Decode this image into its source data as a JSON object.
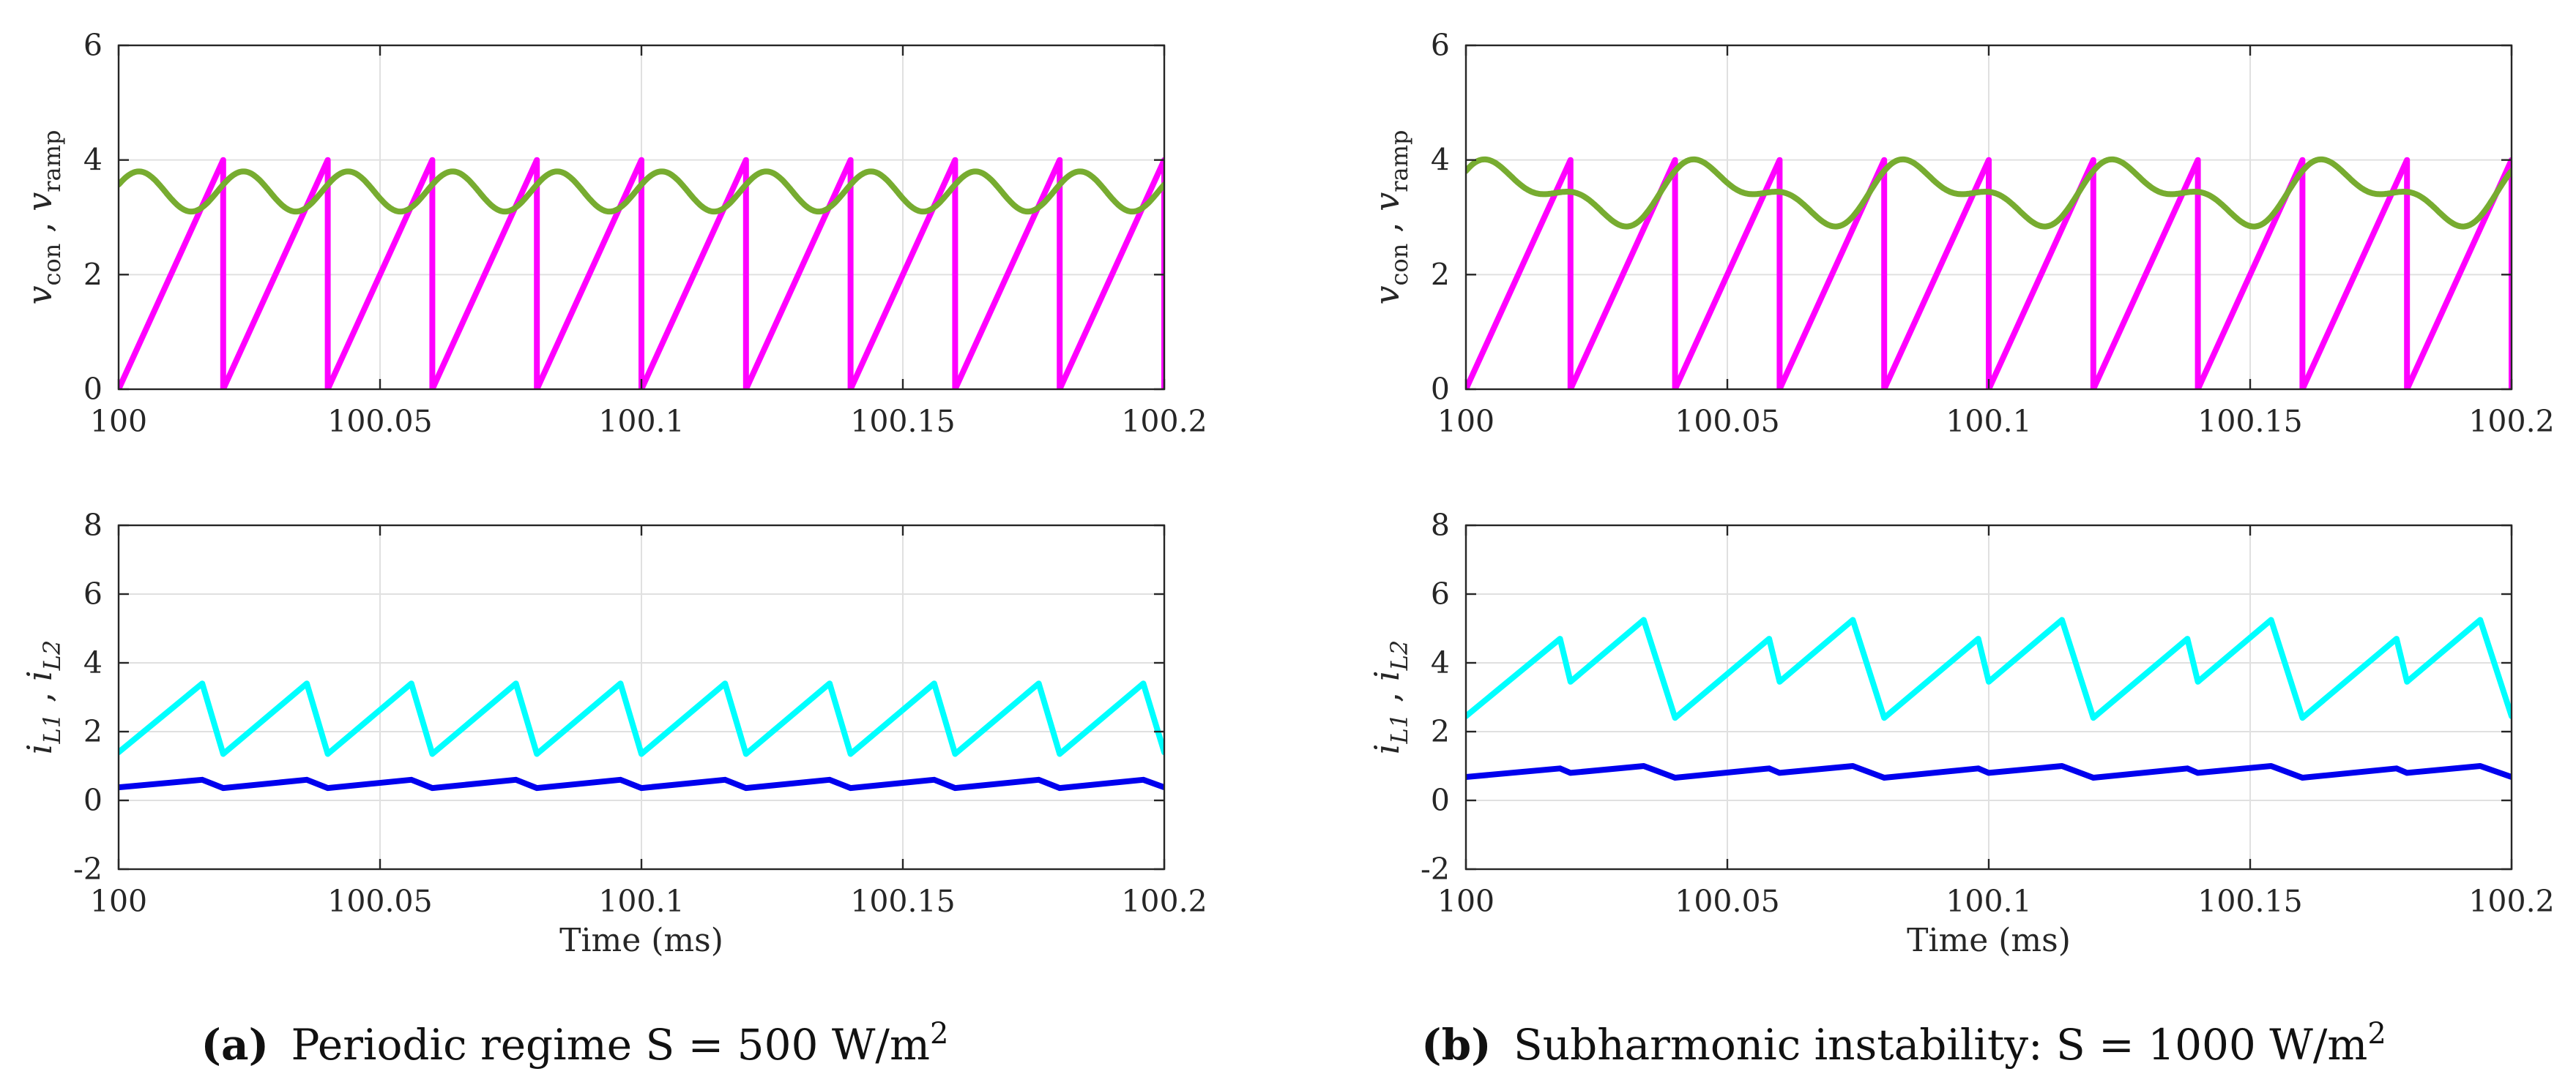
{
  "panels": [
    {
      "id": "a",
      "caption_label": "(a)",
      "caption_text": "Periodic regime S = 500 W/m",
      "caption_sup": "2"
    },
    {
      "id": "b",
      "caption_label": "(b)",
      "caption_text": "Subharmonic instability: S = 1000 W/m",
      "caption_sup": "2"
    }
  ],
  "colors": {
    "v_ramp": "#ff00ff",
    "v_con": "#77ac30",
    "i_L1": "#00ffff",
    "i_L2": "#0000ee"
  },
  "chart_data": [
    {
      "type": "line",
      "panel": "a",
      "xlabel": "",
      "ylabel": {
        "v1": "v",
        "v1_sub": "con",
        "sep": " , ",
        "v2": "v",
        "v2_sub": "ramp"
      },
      "xlim": [
        100,
        100.2
      ],
      "ylim": [
        0,
        6
      ],
      "xticks": [
        100,
        100.05,
        100.1,
        100.15,
        100.2
      ],
      "xtick_labels": [
        "100",
        "100.05",
        "100.1",
        "100.15",
        "100.2"
      ],
      "yticks": [
        0,
        2,
        4,
        6
      ],
      "ytick_labels": [
        "0",
        "2",
        "4",
        "6"
      ],
      "series": [
        {
          "name": "v_ramp",
          "kind": "sawtooth",
          "period_ms": 0.02,
          "min": 0,
          "max": 4
        },
        {
          "name": "v_con",
          "kind": "ripple",
          "min": 3.1,
          "max": 3.8
        }
      ]
    },
    {
      "type": "line",
      "panel": "a",
      "xlabel": "Time (ms)",
      "ylabel": {
        "v1": "i",
        "v1_sub": "L1",
        "sep": " , ",
        "v2": "i",
        "v2_sub": "L2"
      },
      "xlim": [
        100,
        100.2
      ],
      "ylim": [
        -2,
        8
      ],
      "xticks": [
        100,
        100.05,
        100.1,
        100.15,
        100.2
      ],
      "xtick_labels": [
        "100",
        "100.05",
        "100.1",
        "100.15",
        "100.2"
      ],
      "yticks": [
        -2,
        0,
        2,
        4,
        6,
        8
      ],
      "ytick_labels": [
        "-2",
        "0",
        "2",
        "4",
        "6",
        "8"
      ],
      "series": [
        {
          "name": "i_L1",
          "x": [
            100,
            100.016,
            100.02,
            100.036,
            100.04,
            100.056,
            100.06,
            100.076,
            100.08,
            100.096,
            100.1,
            100.116,
            100.12,
            100.136,
            100.14,
            100.156,
            100.16,
            100.176,
            100.18,
            100.196,
            100.2
          ],
          "y": [
            1.4,
            3.4,
            1.35,
            3.4,
            1.35,
            3.4,
            1.35,
            3.4,
            1.35,
            3.4,
            1.35,
            3.4,
            1.35,
            3.4,
            1.35,
            3.4,
            1.35,
            3.4,
            1.35,
            3.4,
            1.4
          ]
        },
        {
          "name": "i_L2",
          "x": [
            100,
            100.016,
            100.02,
            100.036,
            100.04,
            100.056,
            100.06,
            100.076,
            100.08,
            100.096,
            100.1,
            100.116,
            100.12,
            100.136,
            100.14,
            100.156,
            100.16,
            100.176,
            100.18,
            100.196,
            100.2
          ],
          "y": [
            0.38,
            0.6,
            0.36,
            0.6,
            0.36,
            0.6,
            0.36,
            0.6,
            0.36,
            0.6,
            0.36,
            0.6,
            0.36,
            0.6,
            0.36,
            0.6,
            0.36,
            0.6,
            0.36,
            0.6,
            0.38
          ]
        }
      ]
    },
    {
      "type": "line",
      "panel": "b",
      "xlabel": "",
      "ylabel": {
        "v1": "v",
        "v1_sub": "con",
        "sep": " , ",
        "v2": "v",
        "v2_sub": "ramp"
      },
      "xlim": [
        100,
        100.2
      ],
      "ylim": [
        0,
        6
      ],
      "xticks": [
        100,
        100.05,
        100.1,
        100.15,
        100.2
      ],
      "xtick_labels": [
        "100",
        "100.05",
        "100.1",
        "100.15",
        "100.2"
      ],
      "yticks": [
        0,
        2,
        4,
        6
      ],
      "ytick_labels": [
        "0",
        "2",
        "4",
        "6"
      ],
      "series": [
        {
          "name": "v_ramp",
          "kind": "sawtooth",
          "period_ms": 0.02,
          "min": 0,
          "max": 4
        },
        {
          "name": "v_con",
          "kind": "ripple_period2",
          "min": 2.75,
          "max": 4.1
        }
      ]
    },
    {
      "type": "line",
      "panel": "b",
      "xlabel": "Time (ms)",
      "ylabel": {
        "v1": "i",
        "v1_sub": "L1",
        "sep": " , ",
        "v2": "i",
        "v2_sub": "L2"
      },
      "xlim": [
        100,
        100.2
      ],
      "ylim": [
        -2,
        8
      ],
      "xticks": [
        100,
        100.05,
        100.1,
        100.15,
        100.2
      ],
      "xtick_labels": [
        "100",
        "100.05",
        "100.1",
        "100.15",
        "100.2"
      ],
      "yticks": [
        -2,
        0,
        2,
        4,
        6,
        8
      ],
      "ytick_labels": [
        "-2",
        "0",
        "2",
        "4",
        "6",
        "8"
      ],
      "series": [
        {
          "name": "i_L1",
          "x": [
            100,
            100.018,
            100.02,
            100.034,
            100.04,
            100.058,
            100.06,
            100.074,
            100.08,
            100.098,
            100.1,
            100.114,
            100.12,
            100.138,
            100.14,
            100.154,
            100.16,
            100.178,
            100.18,
            100.194,
            100.2
          ],
          "y": [
            2.45,
            4.7,
            3.45,
            5.25,
            2.4,
            4.7,
            3.45,
            5.25,
            2.4,
            4.7,
            3.45,
            5.25,
            2.4,
            4.7,
            3.45,
            5.25,
            2.4,
            4.7,
            3.45,
            5.25,
            2.45
          ]
        },
        {
          "name": "i_L2",
          "x": [
            100,
            100.018,
            100.02,
            100.034,
            100.04,
            100.058,
            100.06,
            100.074,
            100.08,
            100.098,
            100.1,
            100.114,
            100.12,
            100.138,
            100.14,
            100.154,
            100.16,
            100.178,
            100.18,
            100.194,
            100.2
          ],
          "y": [
            0.68,
            0.93,
            0.8,
            1.0,
            0.66,
            0.93,
            0.8,
            1.0,
            0.66,
            0.93,
            0.8,
            1.0,
            0.66,
            0.93,
            0.8,
            1.0,
            0.66,
            0.93,
            0.8,
            1.0,
            0.68
          ]
        }
      ]
    }
  ]
}
